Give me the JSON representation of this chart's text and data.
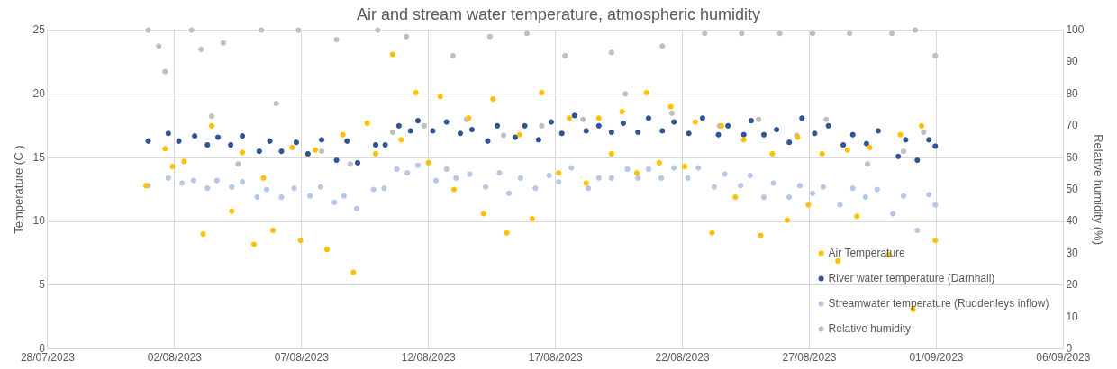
{
  "chart_data": {
    "type": "scatter",
    "title": "Air and stream water temperature, atmospheric humidity",
    "ylabel": "Temperature (C )",
    "y2label": "Relative humidity (%)",
    "xlim": [
      "2023-07-28",
      "2023-09-06"
    ],
    "xticks": [
      {
        "value": "2023-07-28",
        "label": "28/07/2023"
      },
      {
        "value": "2023-08-02",
        "label": "02/08/2023"
      },
      {
        "value": "2023-08-07",
        "label": "07/08/2023"
      },
      {
        "value": "2023-08-12",
        "label": "12/08/2023"
      },
      {
        "value": "2023-08-17",
        "label": "17/08/2023"
      },
      {
        "value": "2023-08-22",
        "label": "22/08/2023"
      },
      {
        "value": "2023-08-27",
        "label": "27/08/2023"
      },
      {
        "value": "2023-09-01",
        "label": "01/09/2023"
      },
      {
        "value": "2023-09-06",
        "label": "06/09/2023"
      }
    ],
    "ylim": [
      0,
      25
    ],
    "yticks": [
      0,
      5,
      10,
      15,
      20,
      25
    ],
    "y2lim": [
      0,
      100
    ],
    "y2ticks": [
      0,
      10,
      20,
      30,
      40,
      50,
      60,
      70,
      80,
      90,
      100
    ],
    "grid": true,
    "legend": "bottom right",
    "marker": "circle",
    "series": [
      {
        "name": "Air Temperature",
        "color": "#ffc000",
        "x": [
          "2023-07-31T21:00",
          "2023-08-01T15:00",
          "2023-08-01T22:00",
          "2023-08-02T09:00",
          "2023-08-03T03:00",
          "2023-08-03T11:00",
          "2023-08-04T06:00",
          "2023-08-04T16:00",
          "2023-08-05T03:00",
          "2023-08-05T12:00",
          "2023-08-05T21:00",
          "2023-08-06T15:00",
          "2023-08-06T23:00",
          "2023-08-07T13:00",
          "2023-08-08T00:00",
          "2023-08-08T15:00",
          "2023-08-09T01:00",
          "2023-08-09T14:00",
          "2023-08-09T22:00",
          "2023-08-10T14:00",
          "2023-08-10T22:00",
          "2023-08-11T12:00",
          "2023-08-12T00:00",
          "2023-08-12T11:00",
          "2023-08-13T00:00",
          "2023-08-13T14:00",
          "2023-08-14T04:00",
          "2023-08-14T13:00",
          "2023-08-15T02:00",
          "2023-08-15T14:00",
          "2023-08-16T02:00",
          "2023-08-16T11:00",
          "2023-08-17T03:00",
          "2023-08-17T13:00",
          "2023-08-18T05:00",
          "2023-08-18T17:00",
          "2023-08-19T05:00",
          "2023-08-19T15:00",
          "2023-08-20T05:00",
          "2023-08-20T14:00",
          "2023-08-21T02:00",
          "2023-08-21T13:00",
          "2023-08-22T02:00",
          "2023-08-22T12:00",
          "2023-08-23T04:00",
          "2023-08-23T13:00",
          "2023-08-24T02:00",
          "2023-08-24T10:00",
          "2023-08-25T02:00",
          "2023-08-25T13:00",
          "2023-08-26T03:00",
          "2023-08-26T13:00",
          "2023-08-26T23:00",
          "2023-08-27T12:00",
          "2023-08-28T03:00",
          "2023-08-28T12:00",
          "2023-08-28T21:00",
          "2023-08-29T09:00",
          "2023-08-30T03:00",
          "2023-08-30T14:00",
          "2023-08-31T02:00",
          "2023-08-31T10:00",
          "2023-08-31T23:00"
        ],
        "values": [
          12.8,
          15.7,
          14.3,
          14.7,
          9.0,
          17.5,
          10.8,
          15.4,
          8.2,
          13.4,
          9.3,
          15.8,
          8.5,
          15.6,
          7.8,
          16.8,
          6.0,
          17.7,
          15.3,
          23.1,
          16.4,
          20.1,
          14.6,
          19.8,
          12.5,
          18.1,
          10.6,
          19.6,
          9.1,
          16.8,
          10.2,
          20.1,
          13.8,
          18.1,
          13.0,
          18.1,
          15.3,
          18.6,
          13.8,
          20.1,
          14.6,
          19.0,
          14.3,
          17.8,
          9.1,
          17.5,
          11.9,
          16.4,
          8.9,
          15.3,
          10.1,
          16.6,
          11.3,
          15.3,
          6.9,
          15.6,
          10.4,
          15.8,
          7.4,
          16.8,
          3.1,
          17.5,
          8.5
        ]
      },
      {
        "name": "River water temperature (Darnhall)",
        "color": "#2f5597",
        "x": [
          "2023-07-31T23:00",
          "2023-08-01T18:00",
          "2023-08-02T04:00",
          "2023-08-02T19:00",
          "2023-08-03T07:00",
          "2023-08-03T17:00",
          "2023-08-04T05:00",
          "2023-08-04T16:00",
          "2023-08-05T08:00",
          "2023-08-05T18:00",
          "2023-08-06T05:00",
          "2023-08-06T19:00",
          "2023-08-07T06:00",
          "2023-08-07T19:00",
          "2023-08-08T09:00",
          "2023-08-08T19:00",
          "2023-08-09T05:00",
          "2023-08-09T22:00",
          "2023-08-10T07:00",
          "2023-08-10T20:00",
          "2023-08-11T07:00",
          "2023-08-11T14:00",
          "2023-08-12T04:00",
          "2023-08-12T17:00",
          "2023-08-13T06:00",
          "2023-08-13T17:00",
          "2023-08-14T08:00",
          "2023-08-14T17:00",
          "2023-08-15T10:00",
          "2023-08-15T19:00",
          "2023-08-16T08:00",
          "2023-08-16T20:00",
          "2023-08-17T06:00",
          "2023-08-17T18:00",
          "2023-08-18T05:00",
          "2023-08-18T17:00",
          "2023-08-19T05:00",
          "2023-08-19T16:00",
          "2023-08-20T06:00",
          "2023-08-20T16:00",
          "2023-08-21T05:00",
          "2023-08-21T16:00",
          "2023-08-22T06:00",
          "2023-08-22T19:00",
          "2023-08-23T10:00",
          "2023-08-23T19:00",
          "2023-08-24T10:00",
          "2023-08-24T17:00",
          "2023-08-25T05:00",
          "2023-08-25T17:00",
          "2023-08-26T05:00",
          "2023-08-26T17:00",
          "2023-08-27T05:00",
          "2023-08-27T18:00",
          "2023-08-28T08:00",
          "2023-08-28T17:00",
          "2023-08-29T06:00",
          "2023-08-29T17:00",
          "2023-08-30T12:00",
          "2023-08-30T19:00",
          "2023-08-31T06:00",
          "2023-08-31T17:00",
          "2023-08-31T23:00"
        ],
        "values": [
          16.3,
          16.9,
          16.3,
          16.7,
          16.0,
          16.6,
          16.0,
          16.7,
          15.5,
          16.3,
          15.5,
          16.2,
          15.3,
          16.4,
          14.8,
          16.3,
          14.6,
          16.0,
          16.0,
          17.5,
          17.1,
          17.9,
          17.1,
          17.8,
          16.9,
          17.2,
          16.3,
          17.5,
          16.6,
          17.5,
          16.4,
          17.8,
          16.9,
          18.3,
          17.1,
          17.5,
          17.0,
          17.7,
          17.0,
          18.1,
          17.1,
          17.8,
          16.9,
          18.1,
          16.8,
          17.5,
          16.8,
          17.9,
          16.8,
          17.2,
          16.2,
          18.1,
          16.9,
          17.5,
          16.0,
          16.8,
          16.1,
          17.1,
          15.1,
          16.4,
          14.8,
          16.4,
          15.9
        ]
      },
      {
        "name": "Streamwater temperature (Ruddenleys inflow)",
        "color": "#b4c7e7",
        "x": [
          "2023-07-31T23:00",
          "2023-08-01T18:00",
          "2023-08-02T07:00",
          "2023-08-02T18:00",
          "2023-08-03T07:00",
          "2023-08-03T16:00",
          "2023-08-04T06:00",
          "2023-08-04T16:00",
          "2023-08-05T06:00",
          "2023-08-05T15:00",
          "2023-08-06T05:00",
          "2023-08-06T17:00",
          "2023-08-07T08:00",
          "2023-08-07T18:00",
          "2023-08-08T07:00",
          "2023-08-08T16:00",
          "2023-08-09T04:00",
          "2023-08-09T20:00",
          "2023-08-10T06:00",
          "2023-08-10T18:00",
          "2023-08-11T04:00",
          "2023-08-11T14:00",
          "2023-08-12T07:00",
          "2023-08-12T17:00",
          "2023-08-13T02:00",
          "2023-08-13T15:00",
          "2023-08-14T06:00",
          "2023-08-14T19:00",
          "2023-08-15T04:00",
          "2023-08-15T15:00",
          "2023-08-16T05:00",
          "2023-08-16T18:00",
          "2023-08-17T03:00",
          "2023-08-17T15:00",
          "2023-08-18T07:00",
          "2023-08-18T17:00",
          "2023-08-19T05:00",
          "2023-08-19T20:00",
          "2023-08-20T06:00",
          "2023-08-20T16:00",
          "2023-08-21T04:00",
          "2023-08-21T16:00",
          "2023-08-22T05:00",
          "2023-08-22T15:00",
          "2023-08-23T06:00",
          "2023-08-23T16:00",
          "2023-08-24T07:00",
          "2023-08-24T16:00",
          "2023-08-25T05:00",
          "2023-08-25T14:00",
          "2023-08-26T05:00",
          "2023-08-26T15:00",
          "2023-08-27T03:00",
          "2023-08-27T13:00",
          "2023-08-28T05:00",
          "2023-08-28T17:00",
          "2023-08-29T05:00",
          "2023-08-29T16:00",
          "2023-08-30T07:00",
          "2023-08-30T17:00",
          "2023-08-31T06:00",
          "2023-08-31T17:00",
          "2023-08-31T23:00"
        ],
        "values": [
          12.8,
          13.4,
          13.0,
          13.2,
          12.6,
          13.2,
          12.7,
          13.1,
          11.9,
          12.5,
          11.9,
          12.6,
          12.0,
          12.7,
          11.5,
          12.0,
          11.0,
          12.5,
          12.6,
          14.1,
          13.8,
          14.4,
          13.2,
          14.1,
          13.4,
          13.7,
          12.7,
          13.8,
          12.2,
          13.4,
          12.6,
          13.6,
          13.1,
          14.2,
          12.6,
          13.4,
          13.4,
          14.1,
          13.4,
          14.1,
          13.4,
          14.2,
          13.4,
          14.2,
          12.7,
          13.7,
          12.8,
          13.6,
          11.9,
          13.0,
          11.9,
          12.8,
          12.2,
          12.7,
          11.3,
          12.6,
          11.9,
          12.5,
          10.6,
          12.0,
          9.3,
          12.1,
          11.3
        ]
      },
      {
        "name": "Relative humidity",
        "color": "#bfbfbf",
        "axis": "y2",
        "x": [
          "2023-07-31T23:00",
          "2023-08-01T09:00",
          "2023-08-01T15:00",
          "2023-08-02T16:00",
          "2023-08-03T01:00",
          "2023-08-03T11:00",
          "2023-08-03T22:00",
          "2023-08-04T12:00",
          "2023-08-05T10:00",
          "2023-08-06T00:00",
          "2023-08-06T21:00",
          "2023-08-07T19:00",
          "2023-08-08T09:00",
          "2023-08-08T22:00",
          "2023-08-10T00:00",
          "2023-08-10T14:00",
          "2023-08-11T03:00",
          "2023-08-11T20:00",
          "2023-08-12T23:00",
          "2023-08-13T12:00",
          "2023-08-14T10:00",
          "2023-08-14T23:00",
          "2023-08-15T21:00",
          "2023-08-16T11:00",
          "2023-08-17T09:00",
          "2023-08-18T02:00",
          "2023-08-19T05:00",
          "2023-08-19T18:00",
          "2023-08-21T05:00",
          "2023-08-21T14:00",
          "2023-08-22T21:00",
          "2023-08-23T11:00",
          "2023-08-24T08:00",
          "2023-08-25T00:00",
          "2023-08-25T20:00",
          "2023-08-26T12:00",
          "2023-08-27T03:00",
          "2023-08-27T16:00",
          "2023-08-28T14:00",
          "2023-08-29T07:00",
          "2023-08-30T06:00",
          "2023-08-30T17:00",
          "2023-08-31T04:00",
          "2023-08-31T12:00",
          "2023-08-31T23:00"
        ],
        "values": [
          100,
          95,
          87,
          100,
          94,
          73,
          96,
          58,
          100,
          77,
          100,
          62,
          97,
          58,
          100,
          68,
          98,
          70,
          92,
          72,
          98,
          67,
          99,
          70,
          92,
          72,
          93,
          80,
          95,
          74,
          99,
          70,
          99,
          72,
          99,
          67,
          99,
          72,
          99,
          58,
          99,
          62,
          100,
          68,
          92
        ]
      }
    ]
  }
}
